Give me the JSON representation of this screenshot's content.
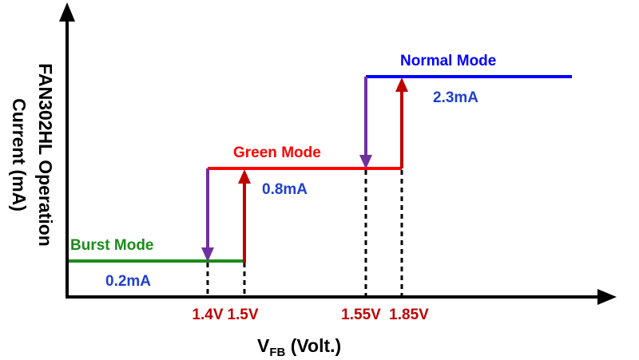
{
  "axes": {
    "x_label_main": "V",
    "x_label_sub": "FB",
    "x_label_rest": " (Volt.)",
    "y_label_line1": "FAN302HL Operation",
    "y_label_line2": "Current (mA)"
  },
  "modes": {
    "burst": {
      "name": "Burst Mode",
      "current": "0.2mA"
    },
    "green": {
      "name": "Green Mode",
      "current": "0.8mA"
    },
    "normal": {
      "name": "Normal Mode",
      "current": "2.3mA"
    }
  },
  "ticks": {
    "v1": "1.4V",
    "v2": "1.5V",
    "v3": "1.55V",
    "v4": "1.85V"
  },
  "colors": {
    "axis": "#000000",
    "burst": "#1a8c1a",
    "green": "#ff0000",
    "normal": "#0000ff",
    "label_blue": "#1f3fd0",
    "tick": "#c00000",
    "rising_arrow": "#c00000",
    "falling_arrow": "#7030a0",
    "dashed": "#000000"
  }
}
